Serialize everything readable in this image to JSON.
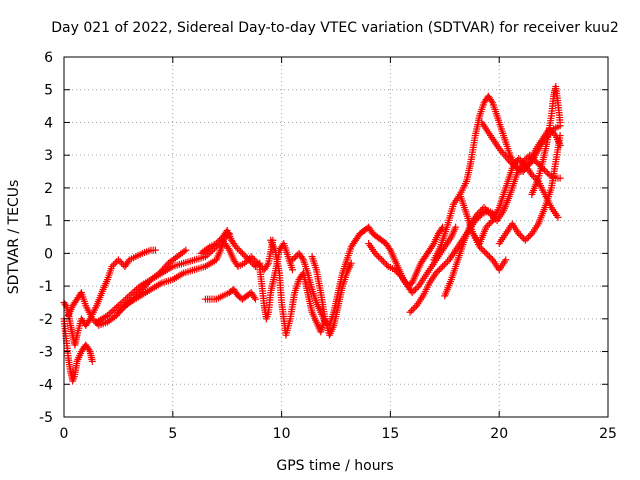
{
  "chart_data": {
    "type": "scatter",
    "title": "Day 021 of 2022, Sidereal Day-to-day VTEC variation (SDTVAR) for receiver kuu2",
    "xlabel": "GPS time / hours",
    "ylabel": "SDTVAR / TECUs",
    "xlim": [
      0,
      25
    ],
    "ylim": [
      -5,
      6
    ],
    "xticks": [
      0,
      5,
      10,
      15,
      20,
      25
    ],
    "yticks": [
      -5,
      -4,
      -3,
      -2,
      -1,
      0,
      1,
      2,
      3,
      4,
      5,
      6
    ],
    "grid": true,
    "marker": "+",
    "color": "#ff0000",
    "series": [
      {
        "name": "trace-1",
        "x": [
          0.0,
          0.1,
          0.2,
          0.3,
          0.4,
          0.5,
          0.6,
          0.8,
          1.0,
          1.2,
          1.5,
          1.8,
          2.0,
          2.2,
          2.5,
          2.8,
          3.0,
          3.3,
          3.6,
          4.0,
          4.2
        ],
        "y": [
          -1.5,
          -1.6,
          -1.8,
          -2.2,
          -2.5,
          -2.8,
          -2.5,
          -2.0,
          -2.2,
          -2.0,
          -1.6,
          -1.1,
          -0.8,
          -0.4,
          -0.2,
          -0.4,
          -0.2,
          -0.1,
          0.0,
          0.1,
          0.1
        ]
      },
      {
        "name": "trace-2",
        "x": [
          0.0,
          0.1,
          0.2,
          0.3,
          0.4,
          0.5,
          0.6,
          0.8,
          1.0,
          1.2,
          1.3
        ],
        "y": [
          -2.0,
          -2.6,
          -3.2,
          -3.6,
          -3.9,
          -3.7,
          -3.3,
          -3.0,
          -2.8,
          -3.0,
          -3.3
        ]
      },
      {
        "name": "trace-3",
        "x": [
          0.2,
          0.4,
          0.6,
          0.8,
          1.0,
          1.3,
          1.6,
          2.0,
          2.4,
          2.8,
          3.2,
          3.6,
          4.0,
          4.4,
          4.8,
          5.2,
          5.6
        ],
        "y": [
          -1.9,
          -1.6,
          -1.4,
          -1.2,
          -1.6,
          -2.0,
          -2.2,
          -2.1,
          -1.9,
          -1.6,
          -1.4,
          -1.1,
          -0.8,
          -0.6,
          -0.3,
          -0.1,
          0.1
        ]
      },
      {
        "name": "trace-4",
        "x": [
          1.5,
          2.0,
          2.5,
          3.0,
          3.5,
          4.0,
          4.5,
          5.0,
          5.5,
          6.0,
          6.5,
          7.0,
          7.3
        ],
        "y": [
          -2.1,
          -1.9,
          -1.6,
          -1.3,
          -1.0,
          -0.8,
          -0.6,
          -0.4,
          -0.3,
          -0.2,
          -0.1,
          0.2,
          0.4
        ]
      },
      {
        "name": "trace-5",
        "x": [
          2.5,
          3.0,
          3.5,
          4.0,
          4.5,
          5.0,
          5.5,
          6.0,
          6.5,
          7.0,
          7.2,
          7.4,
          7.6
        ],
        "y": [
          -1.8,
          -1.5,
          -1.3,
          -1.1,
          -0.9,
          -0.8,
          -0.6,
          -0.5,
          -0.4,
          -0.2,
          0.1,
          0.5,
          0.6
        ]
      },
      {
        "name": "trace-6",
        "x": [
          6.3,
          6.7,
          7.0,
          7.3,
          7.5,
          7.7,
          7.9,
          8.2,
          8.5,
          8.8,
          9.0
        ],
        "y": [
          0.0,
          0.2,
          0.3,
          0.5,
          0.7,
          0.4,
          0.2,
          0.0,
          -0.2,
          -0.4,
          -0.3
        ]
      },
      {
        "name": "trace-7",
        "x": [
          6.5,
          7.0,
          7.3,
          7.6,
          7.8,
          8.0,
          8.2,
          8.4,
          8.6,
          8.8
        ],
        "y": [
          -1.4,
          -1.4,
          -1.3,
          -1.2,
          -1.1,
          -1.3,
          -1.4,
          -1.3,
          -1.2,
          -1.4
        ]
      },
      {
        "name": "trace-8",
        "x": [
          7.4,
          7.6,
          7.8,
          8.0,
          8.3,
          8.6,
          8.9,
          9.2,
          9.4,
          9.6
        ],
        "y": [
          0.3,
          0.1,
          -0.2,
          -0.4,
          -0.3,
          -0.1,
          -0.3,
          -0.5,
          -0.3,
          0.4
        ]
      },
      {
        "name": "trace-9",
        "x": [
          9.0,
          9.1,
          9.2,
          9.3,
          9.4,
          9.5,
          9.7,
          9.9,
          10.1,
          10.3,
          10.5
        ],
        "y": [
          -0.5,
          -1.0,
          -1.6,
          -2.0,
          -1.8,
          -1.2,
          -0.6,
          0.1,
          0.3,
          -0.1,
          -0.5
        ]
      },
      {
        "name": "trace-10",
        "x": [
          9.5,
          9.7,
          9.9,
          10.0,
          10.2,
          10.4,
          10.6,
          10.8,
          11.0,
          11.2,
          11.4,
          11.6,
          11.8,
          12.0
        ],
        "y": [
          0.4,
          0.1,
          -0.6,
          -1.5,
          -2.5,
          -2.0,
          -1.2,
          -0.8,
          -0.6,
          -1.2,
          -1.8,
          -2.1,
          -2.4,
          -2.0
        ]
      },
      {
        "name": "trace-11",
        "x": [
          10.5,
          10.8,
          11.0,
          11.2,
          11.4,
          11.6,
          11.8,
          12.0,
          12.2,
          12.4,
          12.6,
          12.8,
          13.0,
          13.2,
          13.4,
          13.6,
          13.8
        ],
        "y": [
          -0.2,
          0.0,
          -0.2,
          -0.6,
          -1.1,
          -1.5,
          -1.8,
          -2.1,
          -2.2,
          -1.8,
          -1.2,
          -0.6,
          -0.2,
          0.2,
          0.4,
          0.6,
          0.7
        ]
      },
      {
        "name": "trace-12",
        "x": [
          11.4,
          11.6,
          11.8,
          12.0,
          12.2,
          12.4,
          12.6,
          12.8,
          13.0,
          13.2
        ],
        "y": [
          -0.1,
          -0.5,
          -1.2,
          -2.0,
          -2.5,
          -2.2,
          -1.6,
          -1.0,
          -0.6,
          -0.3
        ]
      },
      {
        "name": "trace-13",
        "x": [
          13.8,
          14.0,
          14.2,
          14.4,
          14.6,
          14.8,
          15.0,
          15.2,
          15.4,
          15.6,
          15.8,
          16.0,
          16.2,
          16.4,
          16.6,
          16.8,
          17.0,
          17.2,
          17.4
        ],
        "y": [
          0.7,
          0.8,
          0.6,
          0.5,
          0.4,
          0.3,
          0.1,
          -0.2,
          -0.5,
          -0.8,
          -1.0,
          -0.9,
          -0.6,
          -0.3,
          -0.1,
          0.1,
          0.3,
          0.6,
          0.8
        ]
      },
      {
        "name": "trace-14",
        "x": [
          14.0,
          14.3,
          14.6,
          14.9,
          15.2,
          15.5,
          15.8,
          16.0,
          16.3,
          16.6,
          16.9,
          17.2,
          17.5,
          17.8,
          18.0
        ],
        "y": [
          0.3,
          0.0,
          -0.2,
          -0.4,
          -0.5,
          -0.7,
          -1.0,
          -1.2,
          -1.0,
          -0.7,
          -0.4,
          -0.1,
          0.2,
          0.5,
          0.8
        ]
      },
      {
        "name": "trace-15",
        "x": [
          15.9,
          16.2,
          16.5,
          16.8,
          17.1,
          17.4,
          17.7,
          18.0,
          18.3,
          18.6,
          18.9,
          19.2,
          19.5,
          19.8
        ],
        "y": [
          -1.8,
          -1.6,
          -1.3,
          -0.9,
          -0.6,
          -0.4,
          -0.2,
          0.1,
          0.4,
          0.7,
          1.0,
          1.2,
          1.3,
          1.2
        ]
      },
      {
        "name": "trace-16",
        "x": [
          17.0,
          17.3,
          17.6,
          17.9,
          18.2,
          18.5,
          18.7,
          18.9,
          19.1,
          19.3,
          19.5,
          19.7,
          19.9,
          20.2,
          20.5,
          20.8,
          21.1,
          21.4,
          21.7,
          22.0,
          22.3,
          22.6,
          22.8
        ],
        "y": [
          -0.2,
          0.2,
          0.8,
          1.5,
          1.8,
          2.2,
          2.8,
          3.6,
          4.2,
          4.6,
          4.8,
          4.6,
          4.2,
          3.6,
          3.0,
          2.6,
          2.5,
          2.8,
          3.2,
          3.5,
          3.8,
          3.6,
          3.3
        ]
      },
      {
        "name": "trace-17",
        "x": [
          17.5,
          17.8,
          18.1,
          18.4,
          18.7,
          19.0,
          19.3,
          19.6,
          19.9,
          20.2,
          20.5,
          20.8,
          21.1,
          21.4,
          21.7,
          22.0,
          22.3,
          22.6,
          22.8
        ],
        "y": [
          -1.3,
          -0.8,
          -0.2,
          0.4,
          0.9,
          1.2,
          1.4,
          1.2,
          1.0,
          1.3,
          1.8,
          2.4,
          2.8,
          3.0,
          2.8,
          2.6,
          2.4,
          2.3,
          2.3
        ]
      },
      {
        "name": "trace-18",
        "x": [
          18.2,
          18.5,
          18.8,
          19.1,
          19.4,
          19.7,
          20.0,
          20.3
        ],
        "y": [
          1.8,
          1.2,
          0.6,
          0.2,
          0.0,
          -0.2,
          -0.5,
          -0.2
        ]
      },
      {
        "name": "trace-19",
        "x": [
          18.8,
          19.1,
          19.4,
          19.7,
          20.0,
          20.3,
          20.6,
          20.9,
          21.2,
          21.5,
          21.8,
          22.1,
          22.4,
          22.7
        ],
        "y": [
          0.6,
          0.3,
          0.8,
          1.0,
          1.4,
          2.0,
          2.6,
          2.9,
          2.7,
          2.4,
          2.2,
          1.8,
          1.4,
          1.1
        ]
      },
      {
        "name": "trace-20",
        "x": [
          20.0,
          20.3,
          20.6,
          20.9,
          21.2,
          21.5,
          21.8,
          22.1,
          22.4,
          22.6,
          22.8
        ],
        "y": [
          0.3,
          0.6,
          0.9,
          0.6,
          0.4,
          0.6,
          0.9,
          1.4,
          2.0,
          2.8,
          3.6
        ]
      },
      {
        "name": "trace-21",
        "x": [
          21.5,
          21.8,
          22.0,
          22.2,
          22.4,
          22.5,
          22.6,
          22.7,
          22.8
        ],
        "y": [
          1.8,
          2.3,
          2.8,
          3.4,
          4.2,
          4.8,
          5.1,
          4.6,
          4.0
        ]
      },
      {
        "name": "trace-22",
        "x": [
          19.2,
          19.6,
          20.0,
          20.5,
          21.0,
          21.5,
          22.0,
          22.5,
          22.8
        ],
        "y": [
          4.0,
          3.6,
          3.2,
          2.8,
          2.5,
          2.8,
          3.4,
          3.8,
          3.9
        ]
      }
    ]
  }
}
